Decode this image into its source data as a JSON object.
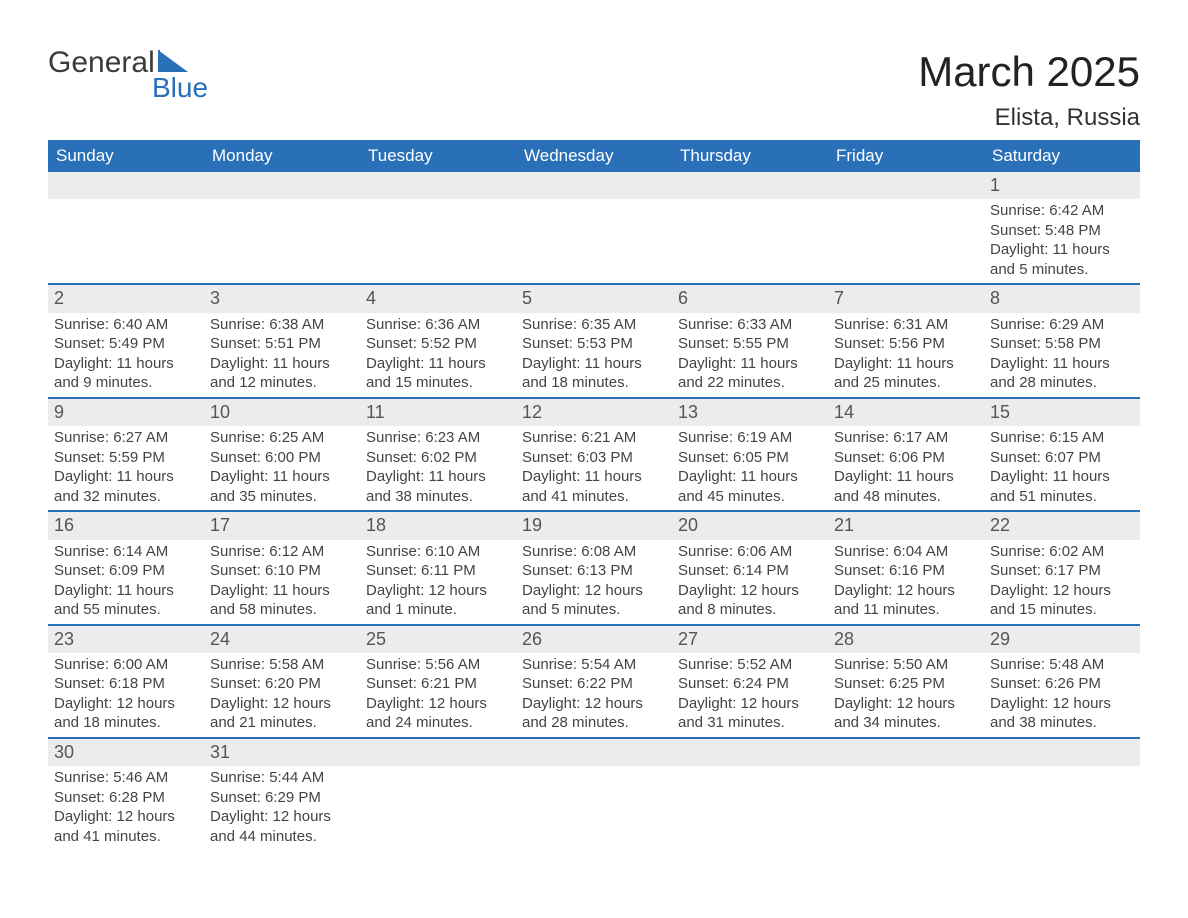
{
  "logo": {
    "text_top": "General",
    "text_bottom": "Blue",
    "top_color": "#3a3a3a",
    "bottom_color": "#2a70b8",
    "shape_color": "#2a70b8"
  },
  "header": {
    "month_title": "March 2025",
    "location": "Elista, Russia"
  },
  "styling": {
    "header_bg": "#2a70b8",
    "header_text": "#ffffff",
    "daynum_bg": "#ececec",
    "daynum_color": "#555555",
    "body_text": "#444444",
    "week_divider": "#2a70b8",
    "page_bg": "#ffffff",
    "font_family": "Arial",
    "th_fontsize": 17,
    "cell_fontsize": 15,
    "title_fontsize": 42,
    "location_fontsize": 24
  },
  "calendar": {
    "columns": [
      "Sunday",
      "Monday",
      "Tuesday",
      "Wednesday",
      "Thursday",
      "Friday",
      "Saturday"
    ],
    "weeks": [
      [
        null,
        null,
        null,
        null,
        null,
        null,
        {
          "day": "1",
          "sunrise": "Sunrise: 6:42 AM",
          "sunset": "Sunset: 5:48 PM",
          "daylight": "Daylight: 11 hours and 5 minutes."
        }
      ],
      [
        {
          "day": "2",
          "sunrise": "Sunrise: 6:40 AM",
          "sunset": "Sunset: 5:49 PM",
          "daylight": "Daylight: 11 hours and 9 minutes."
        },
        {
          "day": "3",
          "sunrise": "Sunrise: 6:38 AM",
          "sunset": "Sunset: 5:51 PM",
          "daylight": "Daylight: 11 hours and 12 minutes."
        },
        {
          "day": "4",
          "sunrise": "Sunrise: 6:36 AM",
          "sunset": "Sunset: 5:52 PM",
          "daylight": "Daylight: 11 hours and 15 minutes."
        },
        {
          "day": "5",
          "sunrise": "Sunrise: 6:35 AM",
          "sunset": "Sunset: 5:53 PM",
          "daylight": "Daylight: 11 hours and 18 minutes."
        },
        {
          "day": "6",
          "sunrise": "Sunrise: 6:33 AM",
          "sunset": "Sunset: 5:55 PM",
          "daylight": "Daylight: 11 hours and 22 minutes."
        },
        {
          "day": "7",
          "sunrise": "Sunrise: 6:31 AM",
          "sunset": "Sunset: 5:56 PM",
          "daylight": "Daylight: 11 hours and 25 minutes."
        },
        {
          "day": "8",
          "sunrise": "Sunrise: 6:29 AM",
          "sunset": "Sunset: 5:58 PM",
          "daylight": "Daylight: 11 hours and 28 minutes."
        }
      ],
      [
        {
          "day": "9",
          "sunrise": "Sunrise: 6:27 AM",
          "sunset": "Sunset: 5:59 PM",
          "daylight": "Daylight: 11 hours and 32 minutes."
        },
        {
          "day": "10",
          "sunrise": "Sunrise: 6:25 AM",
          "sunset": "Sunset: 6:00 PM",
          "daylight": "Daylight: 11 hours and 35 minutes."
        },
        {
          "day": "11",
          "sunrise": "Sunrise: 6:23 AM",
          "sunset": "Sunset: 6:02 PM",
          "daylight": "Daylight: 11 hours and 38 minutes."
        },
        {
          "day": "12",
          "sunrise": "Sunrise: 6:21 AM",
          "sunset": "Sunset: 6:03 PM",
          "daylight": "Daylight: 11 hours and 41 minutes."
        },
        {
          "day": "13",
          "sunrise": "Sunrise: 6:19 AM",
          "sunset": "Sunset: 6:05 PM",
          "daylight": "Daylight: 11 hours and 45 minutes."
        },
        {
          "day": "14",
          "sunrise": "Sunrise: 6:17 AM",
          "sunset": "Sunset: 6:06 PM",
          "daylight": "Daylight: 11 hours and 48 minutes."
        },
        {
          "day": "15",
          "sunrise": "Sunrise: 6:15 AM",
          "sunset": "Sunset: 6:07 PM",
          "daylight": "Daylight: 11 hours and 51 minutes."
        }
      ],
      [
        {
          "day": "16",
          "sunrise": "Sunrise: 6:14 AM",
          "sunset": "Sunset: 6:09 PM",
          "daylight": "Daylight: 11 hours and 55 minutes."
        },
        {
          "day": "17",
          "sunrise": "Sunrise: 6:12 AM",
          "sunset": "Sunset: 6:10 PM",
          "daylight": "Daylight: 11 hours and 58 minutes."
        },
        {
          "day": "18",
          "sunrise": "Sunrise: 6:10 AM",
          "sunset": "Sunset: 6:11 PM",
          "daylight": "Daylight: 12 hours and 1 minute."
        },
        {
          "day": "19",
          "sunrise": "Sunrise: 6:08 AM",
          "sunset": "Sunset: 6:13 PM",
          "daylight": "Daylight: 12 hours and 5 minutes."
        },
        {
          "day": "20",
          "sunrise": "Sunrise: 6:06 AM",
          "sunset": "Sunset: 6:14 PM",
          "daylight": "Daylight: 12 hours and 8 minutes."
        },
        {
          "day": "21",
          "sunrise": "Sunrise: 6:04 AM",
          "sunset": "Sunset: 6:16 PM",
          "daylight": "Daylight: 12 hours and 11 minutes."
        },
        {
          "day": "22",
          "sunrise": "Sunrise: 6:02 AM",
          "sunset": "Sunset: 6:17 PM",
          "daylight": "Daylight: 12 hours and 15 minutes."
        }
      ],
      [
        {
          "day": "23",
          "sunrise": "Sunrise: 6:00 AM",
          "sunset": "Sunset: 6:18 PM",
          "daylight": "Daylight: 12 hours and 18 minutes."
        },
        {
          "day": "24",
          "sunrise": "Sunrise: 5:58 AM",
          "sunset": "Sunset: 6:20 PM",
          "daylight": "Daylight: 12 hours and 21 minutes."
        },
        {
          "day": "25",
          "sunrise": "Sunrise: 5:56 AM",
          "sunset": "Sunset: 6:21 PM",
          "daylight": "Daylight: 12 hours and 24 minutes."
        },
        {
          "day": "26",
          "sunrise": "Sunrise: 5:54 AM",
          "sunset": "Sunset: 6:22 PM",
          "daylight": "Daylight: 12 hours and 28 minutes."
        },
        {
          "day": "27",
          "sunrise": "Sunrise: 5:52 AM",
          "sunset": "Sunset: 6:24 PM",
          "daylight": "Daylight: 12 hours and 31 minutes."
        },
        {
          "day": "28",
          "sunrise": "Sunrise: 5:50 AM",
          "sunset": "Sunset: 6:25 PM",
          "daylight": "Daylight: 12 hours and 34 minutes."
        },
        {
          "day": "29",
          "sunrise": "Sunrise: 5:48 AM",
          "sunset": "Sunset: 6:26 PM",
          "daylight": "Daylight: 12 hours and 38 minutes."
        }
      ],
      [
        {
          "day": "30",
          "sunrise": "Sunrise: 5:46 AM",
          "sunset": "Sunset: 6:28 PM",
          "daylight": "Daylight: 12 hours and 41 minutes."
        },
        {
          "day": "31",
          "sunrise": "Sunrise: 5:44 AM",
          "sunset": "Sunset: 6:29 PM",
          "daylight": "Daylight: 12 hours and 44 minutes."
        },
        null,
        null,
        null,
        null,
        null
      ]
    ]
  }
}
